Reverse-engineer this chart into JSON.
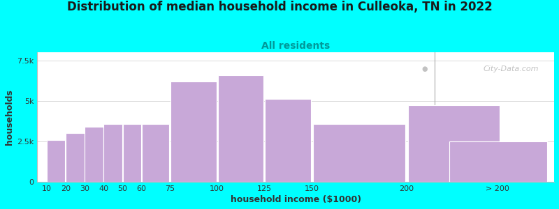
{
  "title": "Distribution of median household income in Culleoka, TN in 2022",
  "subtitle": "All residents",
  "xlabel": "household income ($1000)",
  "ylabel": "households",
  "background_color": "#00FFFF",
  "bar_color": "#c8a8d8",
  "bar_edge_color": "#ffffff",
  "bar_lefts": [
    10,
    20,
    30,
    40,
    50,
    60,
    75,
    100,
    125,
    150,
    200
  ],
  "bar_widths": [
    10,
    10,
    10,
    10,
    10,
    15,
    25,
    25,
    25,
    50,
    50
  ],
  "bar_values": [
    2600,
    3000,
    3400,
    3600,
    3600,
    3600,
    6200,
    6600,
    5150,
    3600,
    4750
  ],
  "last_bar_value": 2500,
  "ylim": [
    0,
    8000
  ],
  "yticks": [
    0,
    2500,
    5000,
    7500
  ],
  "ytick_labels": [
    "0",
    "2.5k",
    "5k",
    "7.5k"
  ],
  "title_fontsize": 12,
  "subtitle_fontsize": 10,
  "axis_label_fontsize": 9,
  "tick_fontsize": 8,
  "watermark": "City-Data.com"
}
